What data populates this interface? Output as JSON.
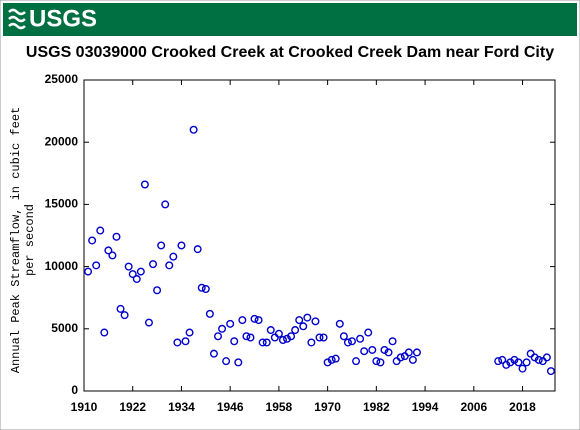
{
  "header": {
    "logo": "USGS"
  },
  "chart_data": {
    "type": "scatter",
    "title": "USGS 03039000 Crooked Creek at Crooked Creek Dam near Ford City",
    "ylabel": [
      "Annual Peak Streamflow, in cubic feet",
      "per second"
    ],
    "color": "#0000cc",
    "xlim": [
      1910,
      2026
    ],
    "xticks": [
      1910,
      1922,
      1934,
      1946,
      1958,
      1970,
      1982,
      1994,
      2006,
      2018
    ],
    "ylim": [
      0,
      25000
    ],
    "yticks": [
      0,
      5000,
      10000,
      15000,
      20000,
      25000
    ],
    "grid": false,
    "x": [
      1911,
      1912,
      1913,
      1914,
      1915,
      1916,
      1917,
      1918,
      1919,
      1920,
      1921,
      1922,
      1923,
      1924,
      1925,
      1926,
      1927,
      1928,
      1929,
      1930,
      1931,
      1932,
      1933,
      1934,
      1935,
      1936,
      1937,
      1938,
      1939,
      1940,
      1941,
      1942,
      1943,
      1944,
      1945,
      1946,
      1947,
      1948,
      1949,
      1950,
      1951,
      1952,
      1953,
      1954,
      1955,
      1956,
      1957,
      1958,
      1959,
      1960,
      1961,
      1962,
      1963,
      1964,
      1965,
      1966,
      1967,
      1968,
      1969,
      1970,
      1971,
      1972,
      1973,
      1974,
      1975,
      1976,
      1977,
      1978,
      1979,
      1980,
      1981,
      1982,
      1983,
      1984,
      1985,
      1986,
      1987,
      1988,
      1989,
      1990,
      1991,
      1992,
      2012,
      2013,
      2014,
      2015,
      2016,
      2017,
      2018,
      2019,
      2020,
      2021,
      2022,
      2023,
      2024,
      2025
    ],
    "values": [
      9600,
      12100,
      10100,
      12900,
      4700,
      11300,
      10900,
      12400,
      6600,
      6100,
      10000,
      9400,
      9000,
      9600,
      16600,
      5500,
      10200,
      8100,
      11700,
      15000,
      10100,
      10800,
      3900,
      11700,
      4000,
      4700,
      21000,
      11400,
      8300,
      8200,
      6200,
      3000,
      4400,
      5000,
      2400,
      5400,
      4000,
      2300,
      5700,
      4400,
      4300,
      5800,
      5700,
      3900,
      3900,
      4900,
      4300,
      4600,
      4100,
      4200,
      4400,
      4900,
      5700,
      5200,
      5900,
      3900,
      5600,
      4300,
      4300,
      2300,
      2500,
      2600,
      5400,
      4400,
      3900,
      4000,
      2400,
      4200,
      3200,
      4700,
      3300,
      2400,
      2300,
      3300,
      3100,
      4000,
      2400,
      2700,
      2800,
      3100,
      2500,
      3100,
      2400,
      2500,
      2100,
      2300,
      2500,
      2300,
      1800,
      2300,
      3000,
      2700,
      2500,
      2400,
      2700,
      1600
    ]
  }
}
